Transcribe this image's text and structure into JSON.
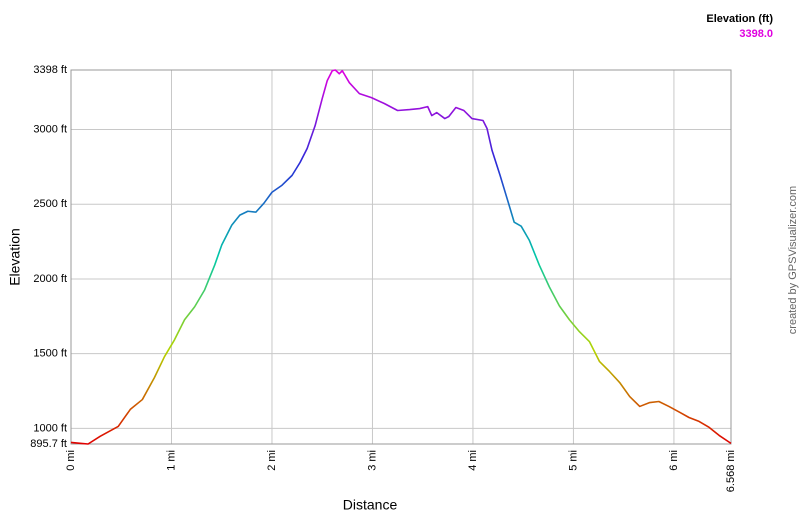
{
  "chart_data": {
    "type": "line",
    "x_label": "Distance",
    "y_label": "Elevation",
    "credit": "created by GPSVisualizer.com",
    "legend_title": "Elevation (ft)",
    "color_scale": [
      {
        "value": 3398,
        "label": "3398.0",
        "color": "#e000e0"
      },
      {
        "value": 2772.4,
        "color": "#2a2ad8"
      },
      {
        "value": 2146.8,
        "color": "#00c8a8"
      },
      {
        "value": 1521.2,
        "color": "#b4d400"
      },
      {
        "value": 895.7,
        "color": "#e00000"
      }
    ],
    "xlim": [
      0,
      6.568
    ],
    "ylim": [
      895.7,
      3398
    ],
    "xticks": [
      {
        "value": 0,
        "label": "0 mi"
      },
      {
        "value": 1,
        "label": "1 mi"
      },
      {
        "value": 2,
        "label": "2 mi"
      },
      {
        "value": 3,
        "label": "3 mi"
      },
      {
        "value": 4,
        "label": "4 mi"
      },
      {
        "value": 5,
        "label": "5 mi"
      },
      {
        "value": 6,
        "label": "6 mi"
      },
      {
        "value": 6.568,
        "label": "6.568 mi"
      }
    ],
    "yticks": [
      {
        "value": 895.7,
        "label": "895.7 ft"
      },
      {
        "value": 1000,
        "label": "1000 ft"
      },
      {
        "value": 1500,
        "label": "1500 ft"
      },
      {
        "value": 2000,
        "label": "2000 ft"
      },
      {
        "value": 2500,
        "label": "2500 ft"
      },
      {
        "value": 3000,
        "label": "3000 ft"
      },
      {
        "value": 3398,
        "label": "3398 ft"
      }
    ],
    "grid": true,
    "x": [
      0,
      0.09,
      0.17,
      0.29,
      0.47,
      0.59,
      0.71,
      0.83,
      0.93,
      1.03,
      1.13,
      1.23,
      1.33,
      1.43,
      1.5,
      1.6,
      1.68,
      1.76,
      1.84,
      1.92,
      2.0,
      2.1,
      2.2,
      2.28,
      2.35,
      2.43,
      2.5,
      2.55,
      2.6,
      2.63,
      2.67,
      2.7,
      2.77,
      2.87,
      2.99,
      3.12,
      3.25,
      3.37,
      3.47,
      3.55,
      3.59,
      3.64,
      3.72,
      3.76,
      3.83,
      3.91,
      3.99,
      4.1,
      4.14,
      4.19,
      4.27,
      4.36,
      4.41,
      4.48,
      4.56,
      4.66,
      4.76,
      4.86,
      4.96,
      5.06,
      5.16,
      5.26,
      5.36,
      5.46,
      5.56,
      5.66,
      5.76,
      5.85,
      5.95,
      6.06,
      6.15,
      6.25,
      6.35,
      6.45,
      6.568
    ],
    "series": [
      {
        "name": "Elevation",
        "values": [
          906,
          900,
          895.7,
          947,
          1013,
          1127,
          1193,
          1340,
          1480,
          1593,
          1727,
          1813,
          1927,
          2093,
          2227,
          2360,
          2427,
          2453,
          2447,
          2507,
          2580,
          2627,
          2693,
          2780,
          2873,
          3027,
          3207,
          3327,
          3393,
          3398,
          3373,
          3393,
          3313,
          3240,
          3213,
          3173,
          3127,
          3133,
          3140,
          3153,
          3093,
          3113,
          3073,
          3087,
          3147,
          3127,
          3073,
          3060,
          3007,
          2860,
          2693,
          2493,
          2380,
          2353,
          2260,
          2093,
          1947,
          1820,
          1727,
          1647,
          1580,
          1447,
          1380,
          1307,
          1213,
          1147,
          1173,
          1180,
          1147,
          1107,
          1073,
          1047,
          1007,
          953,
          900
        ]
      }
    ]
  }
}
